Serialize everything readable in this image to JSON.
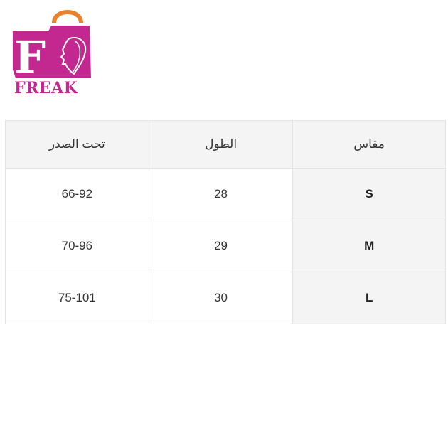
{
  "brand": {
    "name": "FREAK",
    "letter": "F",
    "colors": {
      "primary": "#c2288f",
      "handle": "#e8822e"
    }
  },
  "table": {
    "headers": [
      "مقاس",
      "الطول",
      "تحت الصدر"
    ],
    "rows": [
      {
        "size": "S",
        "length": "28",
        "underbust": "66-92"
      },
      {
        "size": "M",
        "length": "29",
        "underbust": "70-96"
      },
      {
        "size": "L",
        "length": "30",
        "underbust": "75-101"
      }
    ]
  }
}
